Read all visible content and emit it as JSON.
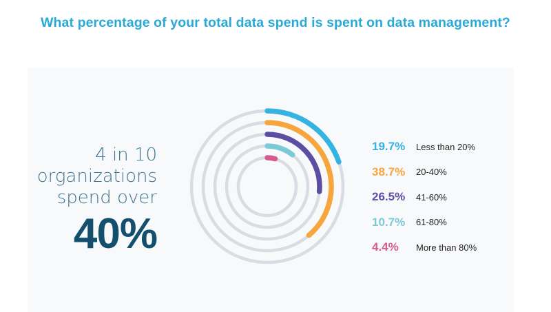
{
  "title": "What percentage of your total data spend is spent on data management?",
  "callout": {
    "lines": [
      "4 in 10",
      "organizations",
      "spend over"
    ],
    "big": "40%"
  },
  "colors": {
    "track": "#d9dce3",
    "panel": "#f8f9fb"
  },
  "chart_data": {
    "type": "radial-bar",
    "unit": "%",
    "max": 100,
    "series": [
      {
        "label": "Less than 20%",
        "value": 19.7,
        "display": "19.7%",
        "color": "#35b3e1"
      },
      {
        "label": "20-40%",
        "value": 38.7,
        "display": "38.7%",
        "color": "#f6a63c"
      },
      {
        "label": "41-60%",
        "value": 26.5,
        "display": "26.5%",
        "color": "#5c4ea3"
      },
      {
        "label": "61-80%",
        "value": 10.7,
        "display": "10.7%",
        "color": "#7ccad8"
      },
      {
        "label": "More than 80%",
        "value": 4.4,
        "display": "4.4%",
        "color": "#d45a8f"
      }
    ]
  }
}
